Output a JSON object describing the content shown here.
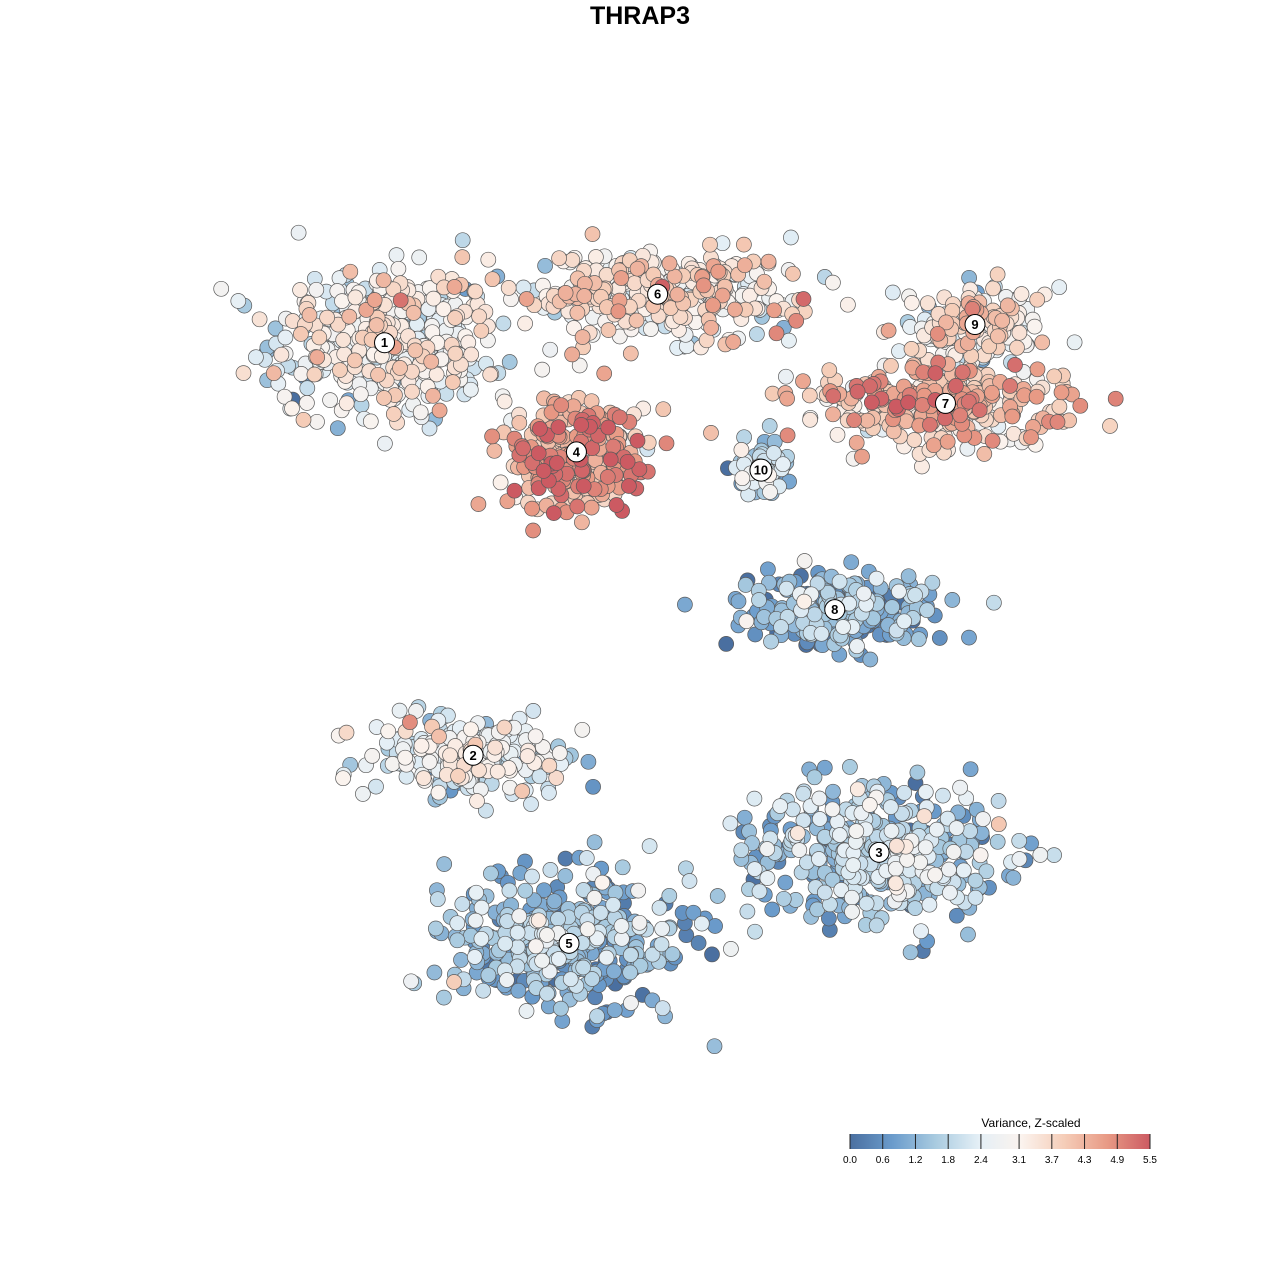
{
  "chart_data": {
    "type": "scatter",
    "title": "THRAP3",
    "xlabel": "",
    "ylabel": "",
    "grid": false,
    "legend": {
      "title": "Variance, Z-scaled",
      "placement": "bottom-right",
      "range": [
        0.0,
        5.5
      ],
      "ticks": [
        "0.0",
        "0.6",
        "1.2",
        "1.8",
        "2.4",
        "3.1",
        "3.7",
        "4.3",
        "4.9",
        "5.5"
      ],
      "colors": [
        "#4a6fa0",
        "#6b9ccc",
        "#a9cbe0",
        "#e4eff6",
        "#fbf3ee",
        "#f5cdb8",
        "#e89a85",
        "#cc5a62"
      ]
    },
    "clusters": [
      {
        "label": "1",
        "x": -3.2,
        "y": 3.5,
        "spread": [
          1.4,
          1.1
        ],
        "mean_value": 2.7
      },
      {
        "label": "2",
        "x": -2.0,
        "y": -3.3,
        "spread": [
          1.3,
          0.6
        ],
        "mean_value": 2.3
      },
      {
        "label": "3",
        "x": 3.5,
        "y": -4.9,
        "spread": [
          1.5,
          1.0
        ],
        "mean_value": 1.6
      },
      {
        "label": "4",
        "x": -0.6,
        "y": 1.7,
        "spread": [
          0.9,
          0.9
        ],
        "mean_value": 4.3
      },
      {
        "label": "5",
        "x": -0.7,
        "y": -6.4,
        "spread": [
          1.5,
          1.0
        ],
        "mean_value": 1.2
      },
      {
        "label": "6",
        "x": 0.5,
        "y": 4.3,
        "spread": [
          1.8,
          0.6
        ],
        "mean_value": 3.2
      },
      {
        "label": "7",
        "x": 4.4,
        "y": 2.5,
        "spread": [
          1.6,
          0.6
        ],
        "mean_value": 3.9
      },
      {
        "label": "8",
        "x": 2.9,
        "y": -0.9,
        "spread": [
          1.2,
          0.6
        ],
        "mean_value": 1.0
      },
      {
        "label": "9",
        "x": 4.8,
        "y": 3.8,
        "spread": [
          0.8,
          0.6
        ],
        "mean_value": 3.1
      },
      {
        "label": "10",
        "x": 1.9,
        "y": 1.4,
        "spread": [
          0.3,
          0.4
        ],
        "mean_value": 1.6
      }
    ],
    "xlim": [
      -5.7,
      6.9
    ],
    "ylim": [
      -8.9,
      6.1
    ]
  }
}
